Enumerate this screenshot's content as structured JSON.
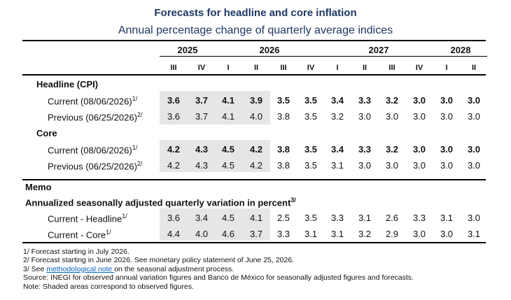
{
  "title": "Forecasts for headline and core inflation",
  "subtitle": "Annual percentage change of quarterly average indices",
  "years": [
    "2025",
    "2026",
    "2027",
    "2028"
  ],
  "quarters": [
    "III",
    "IV",
    "I",
    "II",
    "III",
    "IV",
    "I",
    "II",
    "III",
    "IV",
    "I",
    "II"
  ],
  "observed_quarters": 4,
  "sections": {
    "headline": {
      "title": "Headline (CPI)",
      "current": {
        "label": "Current (08/06/2026)",
        "note": "1/",
        "values": [
          "3.6",
          "3.7",
          "4.1",
          "3.9",
          "3.5",
          "3.5",
          "3.4",
          "3.3",
          "3.2",
          "3.0",
          "3.0",
          "3.0"
        ]
      },
      "previous": {
        "label": "Previous (06/25/2026)",
        "note": "2/",
        "values": [
          "3.6",
          "3.7",
          "4.1",
          "4.0",
          "3.8",
          "3.5",
          "3.2",
          "3.0",
          "3.0",
          "3.0",
          "3.0",
          "3.0"
        ]
      }
    },
    "core": {
      "title": "Core",
      "current": {
        "label": "Current (08/06/2026)",
        "note": "1/",
        "values": [
          "4.2",
          "4.3",
          "4.5",
          "4.2",
          "3.8",
          "3.5",
          "3.4",
          "3.3",
          "3.2",
          "3.0",
          "3.0",
          "3.0"
        ]
      },
      "previous": {
        "label": "Previous (06/25/2026)",
        "note": "2/",
        "values": [
          "4.2",
          "4.3",
          "4.5",
          "4.2",
          "3.8",
          "3.5",
          "3.1",
          "3.0",
          "3.0",
          "3.0",
          "3.0",
          "3.0"
        ]
      }
    }
  },
  "memo": {
    "title": "Memo",
    "subtitle": "Annualized seasonally adjusted quarterly variation in percent",
    "subtitle_note": "3/",
    "headline": {
      "label": "Current - Headline",
      "note": "1/",
      "values": [
        "3.6",
        "3.4",
        "4.5",
        "4.1",
        "2.5",
        "3.5",
        "3.3",
        "3.1",
        "2.6",
        "3.3",
        "3.1",
        "3.0"
      ]
    },
    "core": {
      "label": "Current - Core",
      "note": "1/",
      "values": [
        "4.4",
        "4.0",
        "4.6",
        "3.7",
        "3.3",
        "3.1",
        "3.1",
        "3.2",
        "2.9",
        "3.0",
        "3.0",
        "3.1"
      ]
    }
  },
  "footnotes": {
    "n1": "1/ Forecast starting in July 2026.",
    "n2": "2/ Forecast starting in June 2026. See monetary policy statement of June 25, 2026.",
    "n3_before": "3/ See ",
    "n3_link": "methodological note ",
    "n3_after": "on the seasonal adjustment process.",
    "source": "Source: INEGI for observed annual variation figures and Banco de México for seasonally adjusted figures and forecasts.",
    "note": "Note: Shaded areas correspond to observed figures."
  }
}
